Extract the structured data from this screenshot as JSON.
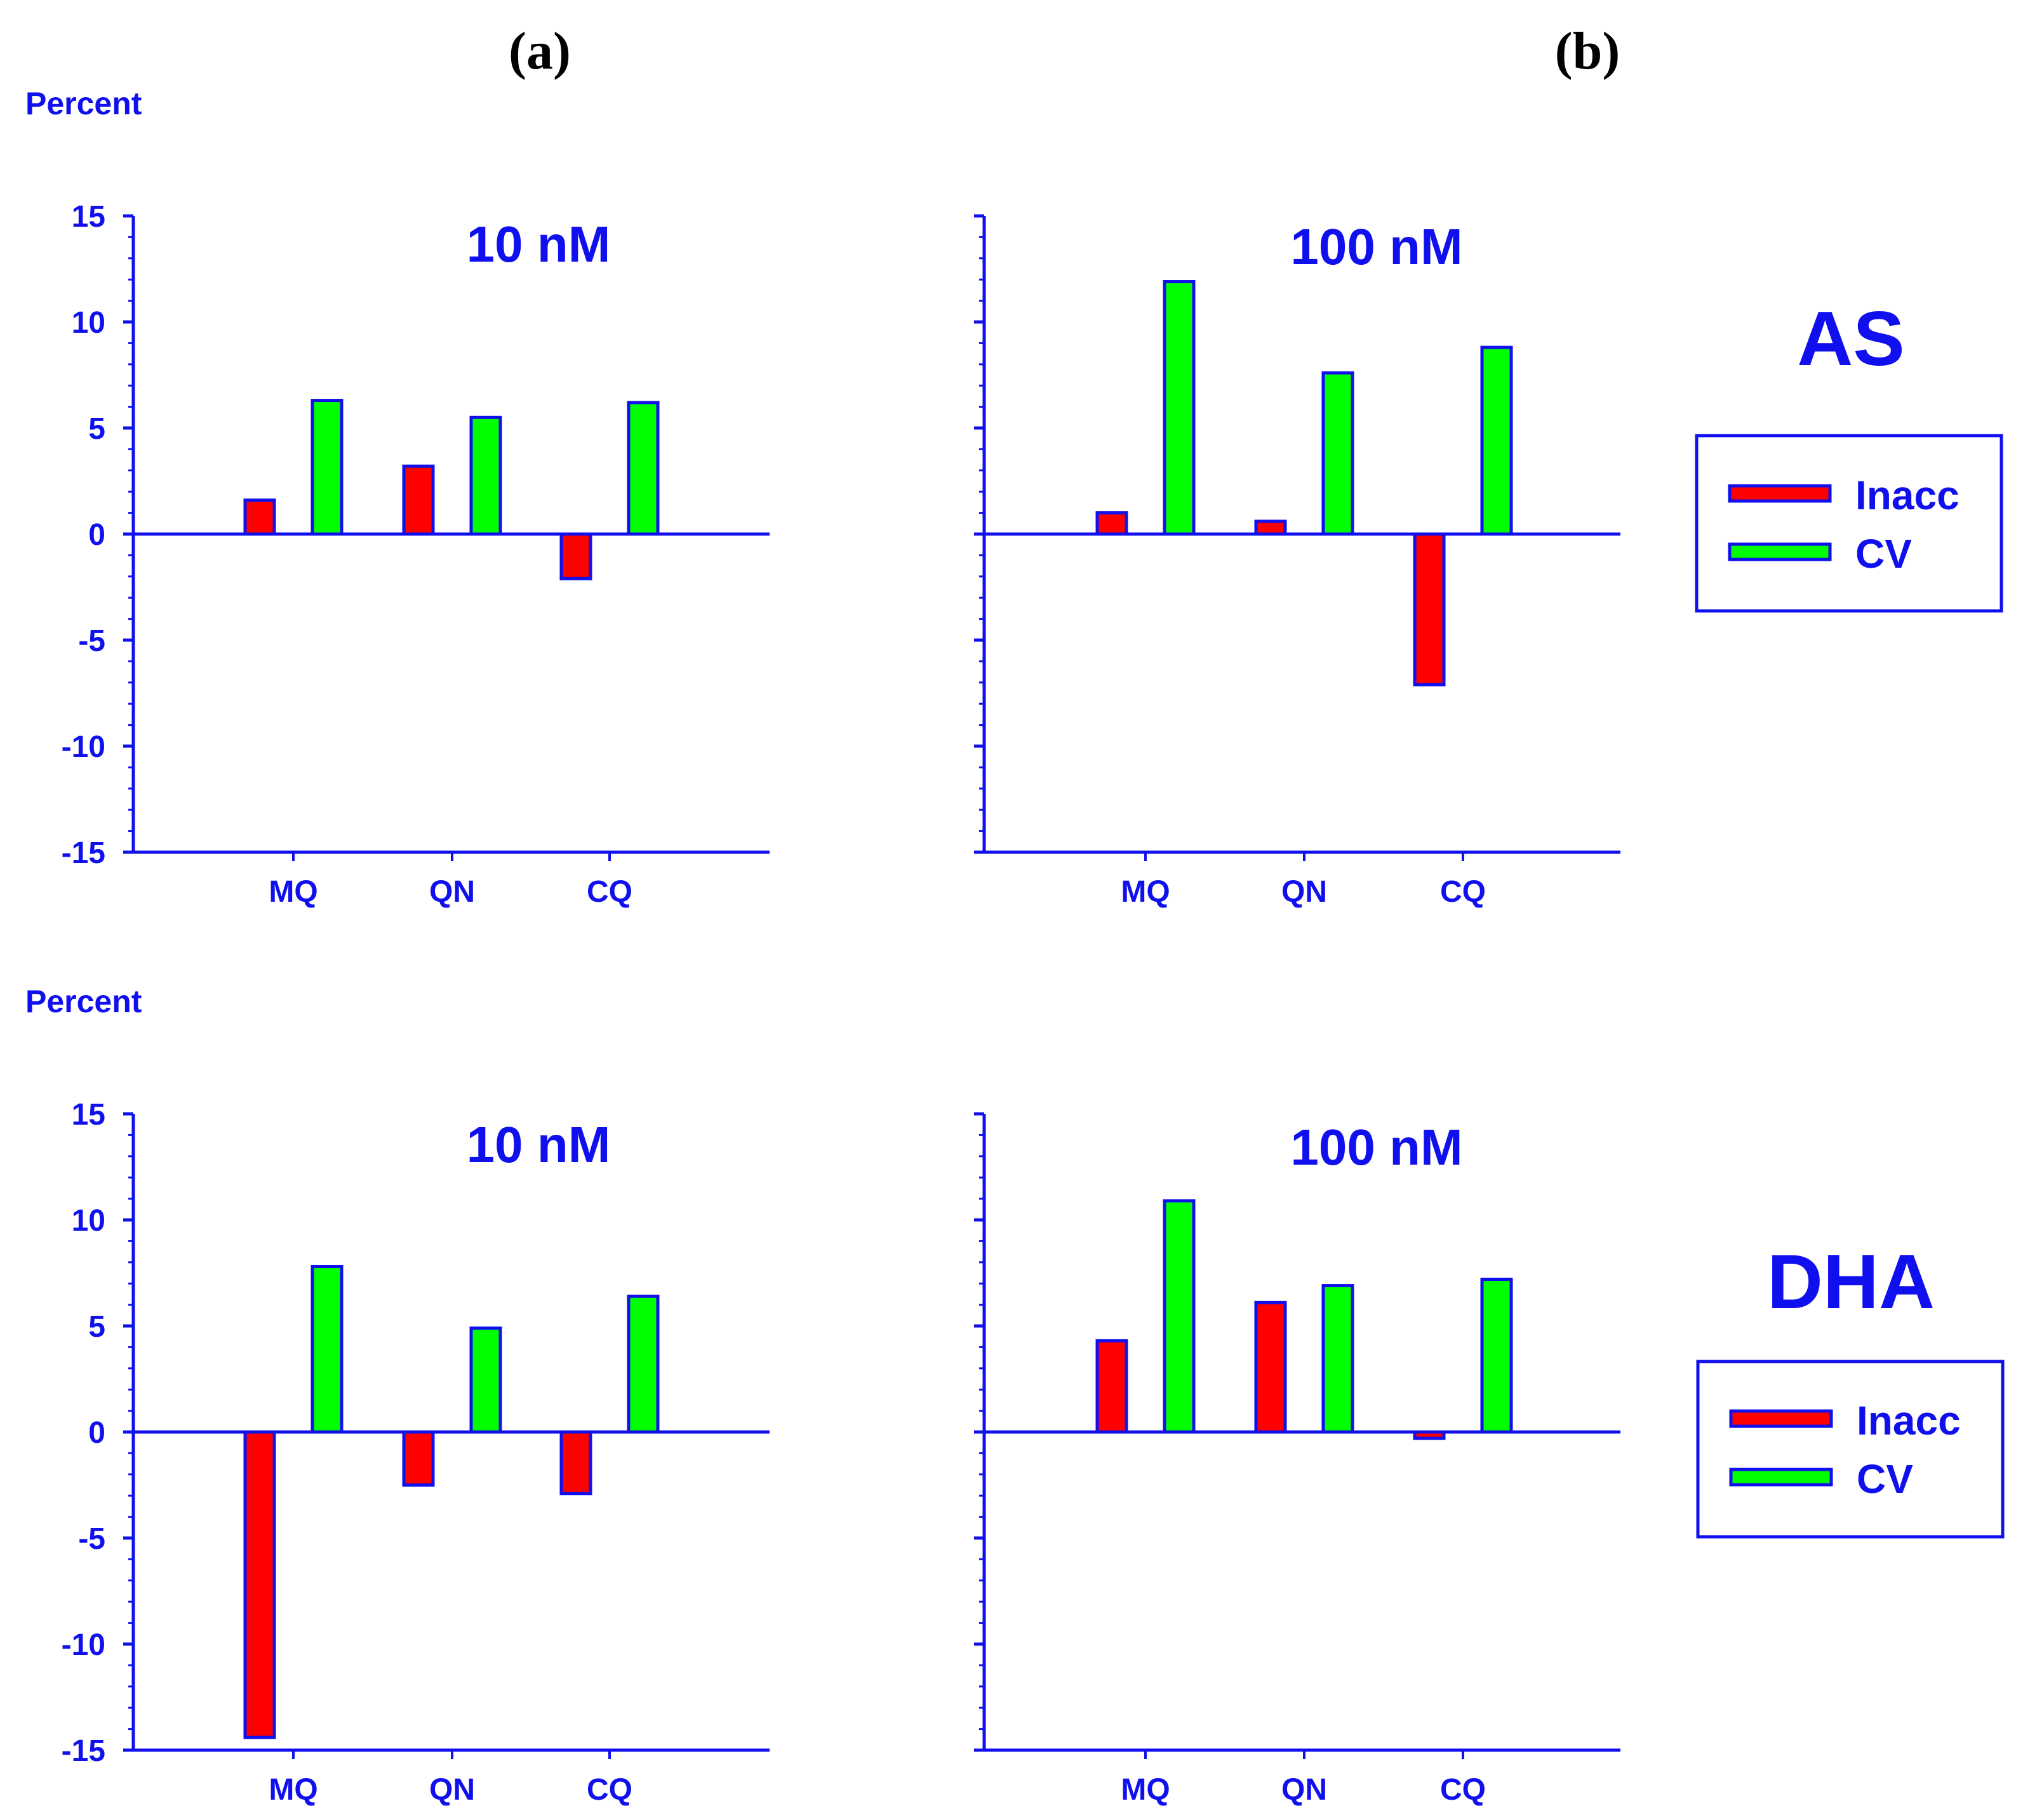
{
  "figure": {
    "panel_labels": [
      "(a)",
      "(b)"
    ],
    "y_label": "Percent",
    "rows": [
      {
        "drug": "AS",
        "legend": [
          {
            "label": "Inacc",
            "color": "#ff0000"
          },
          {
            "label": "CV",
            "color": "#00ff00"
          }
        ]
      },
      {
        "drug": "DHA",
        "legend": [
          {
            "label": "Inacc",
            "color": "#ff0000"
          },
          {
            "label": "CV",
            "color": "#00ff00"
          }
        ]
      }
    ]
  },
  "chart_data": [
    {
      "type": "bar",
      "title": "10 nM",
      "group": "AS",
      "categories": [
        "MQ",
        "QN",
        "CQ"
      ],
      "series": [
        {
          "name": "Inacc",
          "color": "#ff0000",
          "values": [
            1.6,
            3.2,
            -2.1
          ]
        },
        {
          "name": "CV",
          "color": "#00ff00",
          "values": [
            6.3,
            5.5,
            6.2
          ]
        }
      ],
      "ylim": [
        -15,
        15
      ],
      "yticks": [
        "15",
        "10",
        "5",
        "0",
        "-5",
        "-10",
        "-15"
      ],
      "ylabel": "Percent"
    },
    {
      "type": "bar",
      "title": "100 nM",
      "group": "AS",
      "categories": [
        "MQ",
        "QN",
        "CQ"
      ],
      "series": [
        {
          "name": "Inacc",
          "color": "#ff0000",
          "values": [
            1.0,
            0.6,
            -7.1
          ]
        },
        {
          "name": "CV",
          "color": "#00ff00",
          "values": [
            11.9,
            7.6,
            8.8
          ]
        }
      ],
      "ylim": [
        -15,
        15
      ],
      "yticks": [],
      "ylabel": ""
    },
    {
      "type": "bar",
      "title": "10 nM",
      "group": "DHA",
      "categories": [
        "MQ",
        "QN",
        "CQ"
      ],
      "series": [
        {
          "name": "Inacc",
          "color": "#ff0000",
          "values": [
            -14.4,
            -2.5,
            -2.9
          ]
        },
        {
          "name": "CV",
          "color": "#00ff00",
          "values": [
            7.8,
            4.9,
            6.4
          ]
        }
      ],
      "ylim": [
        -15,
        15
      ],
      "yticks": [
        "15",
        "10",
        "5",
        "0",
        "-5",
        "-10",
        "-15"
      ],
      "ylabel": "Percent"
    },
    {
      "type": "bar",
      "title": "100 nM",
      "group": "DHA",
      "categories": [
        "MQ",
        "QN",
        "CQ"
      ],
      "series": [
        {
          "name": "Inacc",
          "color": "#ff0000",
          "values": [
            4.3,
            6.1,
            -0.3
          ]
        },
        {
          "name": "CV",
          "color": "#00ff00",
          "values": [
            10.9,
            6.9,
            7.2
          ]
        }
      ],
      "ylim": [
        -15,
        15
      ],
      "yticks": [],
      "ylabel": ""
    }
  ]
}
